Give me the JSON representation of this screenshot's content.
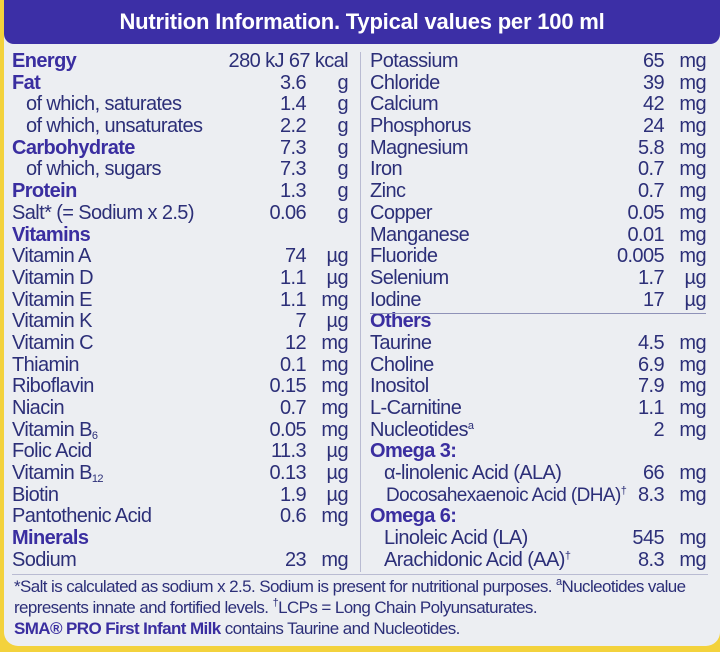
{
  "header": {
    "title": "Nutrition Information. Typical values per 100 ml"
  },
  "left": [
    {
      "name": "Energy",
      "value": "280 kJ 67 kcal",
      "unit": "",
      "style": "head energy"
    },
    {
      "name": "Fat",
      "value": "3.6",
      "unit": "g",
      "style": "head"
    },
    {
      "name": "of which, saturates",
      "value": "1.4",
      "unit": "g",
      "style": "indent"
    },
    {
      "name": "of which, unsaturates",
      "value": "2.2",
      "unit": "g",
      "style": "indent"
    },
    {
      "name": "Carbohydrate",
      "value": "7.3",
      "unit": "g",
      "style": "head"
    },
    {
      "name": "of which, sugars",
      "value": "7.3",
      "unit": "g",
      "style": "indent"
    },
    {
      "name": "Protein",
      "value": "1.3",
      "unit": "g",
      "style": "head"
    },
    {
      "name": "Salt* (= Sodium x 2.5)",
      "value": "0.06",
      "unit": "g",
      "style": ""
    },
    {
      "name": "Vitamins",
      "value": "",
      "unit": "",
      "style": "head"
    },
    {
      "name": "Vitamin A",
      "value": "74",
      "unit": "µg",
      "style": ""
    },
    {
      "name": "Vitamin D",
      "value": "1.1",
      "unit": "µg",
      "style": ""
    },
    {
      "name": "Vitamin E",
      "value": "1.1",
      "unit": "mg",
      "style": ""
    },
    {
      "name": "Vitamin K",
      "value": "7",
      "unit": "µg",
      "style": ""
    },
    {
      "name": "Vitamin C",
      "value": "12",
      "unit": "mg",
      "style": ""
    },
    {
      "name": "Thiamin",
      "value": "0.1",
      "unit": "mg",
      "style": ""
    },
    {
      "name": "Riboflavin",
      "value": "0.15",
      "unit": "mg",
      "style": ""
    },
    {
      "name": "Niacin",
      "value": "0.7",
      "unit": "mg",
      "style": ""
    },
    {
      "name": "Vitamin B",
      "sub": "6",
      "value": "0.05",
      "unit": "mg",
      "style": ""
    },
    {
      "name": "Folic Acid",
      "value": "11.3",
      "unit": "µg",
      "style": ""
    },
    {
      "name": "Vitamin B",
      "sub": "12",
      "value": "0.13",
      "unit": "µg",
      "style": ""
    },
    {
      "name": "Biotin",
      "value": "1.9",
      "unit": "µg",
      "style": ""
    },
    {
      "name": "Pantothenic Acid",
      "value": "0.6",
      "unit": "mg",
      "style": ""
    },
    {
      "name": "Minerals",
      "value": "",
      "unit": "",
      "style": "head"
    },
    {
      "name": "Sodium",
      "value": "23",
      "unit": "mg",
      "style": ""
    }
  ],
  "right": [
    {
      "name": "Potassium",
      "value": "65",
      "unit": "mg",
      "style": ""
    },
    {
      "name": "Chloride",
      "value": "39",
      "unit": "mg",
      "style": ""
    },
    {
      "name": "Calcium",
      "value": "42",
      "unit": "mg",
      "style": ""
    },
    {
      "name": "Phosphorus",
      "value": "24",
      "unit": "mg",
      "style": ""
    },
    {
      "name": "Magnesium",
      "value": "5.8",
      "unit": "mg",
      "style": ""
    },
    {
      "name": "Iron",
      "value": "0.7",
      "unit": "mg",
      "style": ""
    },
    {
      "name": "Zinc",
      "value": "0.7",
      "unit": "mg",
      "style": ""
    },
    {
      "name": "Copper",
      "value": "0.05",
      "unit": "mg",
      "style": ""
    },
    {
      "name": "Manganese",
      "value": "0.01",
      "unit": "mg",
      "style": ""
    },
    {
      "name": "Fluoride",
      "value": "0.005",
      "unit": "mg",
      "style": ""
    },
    {
      "name": "Selenium",
      "value": "1.7",
      "unit": "µg",
      "style": ""
    },
    {
      "name": "Iodine",
      "value": "17",
      "unit": "µg",
      "style": ""
    },
    {
      "name": "Others",
      "value": "",
      "unit": "",
      "style": "head"
    },
    {
      "name": "Taurine",
      "value": "4.5",
      "unit": "mg",
      "style": ""
    },
    {
      "name": "Choline",
      "value": "6.9",
      "unit": "mg",
      "style": ""
    },
    {
      "name": "Inositol",
      "value": "7.9",
      "unit": "mg",
      "style": ""
    },
    {
      "name": "L-Carnitine",
      "value": "1.1",
      "unit": "mg",
      "style": ""
    },
    {
      "name": "Nucleotides",
      "sup": "a",
      "value": "2",
      "unit": "mg",
      "style": ""
    },
    {
      "name": "Omega 3:",
      "value": "",
      "unit": "",
      "style": "head"
    },
    {
      "name": "α-linolenic Acid (ALA)",
      "value": "66",
      "unit": "mg",
      "style": "indent"
    },
    {
      "name": "Docosahexaenoic Acid (DHA)",
      "sup": "†",
      "value": "8.3",
      "unit": "mg",
      "style": "indent2"
    },
    {
      "name": "Omega 6:",
      "value": "",
      "unit": "",
      "style": "head"
    },
    {
      "name": "Linoleic Acid (LA)",
      "value": "545",
      "unit": "mg",
      "style": "indent"
    },
    {
      "name": "Arachidonic Acid (AA)",
      "sup": "†",
      "value": "8.3",
      "unit": "mg",
      "style": "indent"
    }
  ],
  "footnote": {
    "line1": "*Salt is calculated as sodium x 2.5. Sodium is present for nutritional purposes. ",
    "sup_a": "a",
    "line1b": "Nucleotides value represents innate and fortified levels. ",
    "sup_dagger": "†",
    "line2": "LCPs = Long Chain Polyunsaturates.",
    "brand": "SMA® PRO First Infant Milk",
    "line3": " contains Taurine and Nucleotides."
  },
  "colors": {
    "header_bg": "#3c2fa6",
    "text": "#2c2f78",
    "border": "#f3d23c"
  }
}
